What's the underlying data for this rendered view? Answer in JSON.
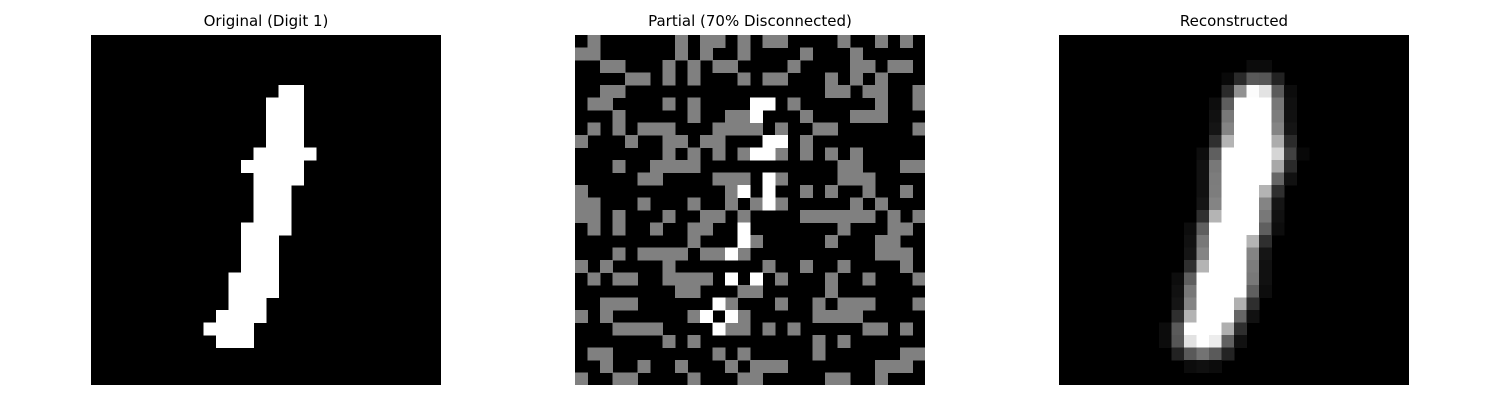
{
  "figure": {
    "panels": [
      {
        "title": "Original (Digit 1)"
      },
      {
        "title": "Partial (70% Disconnected)"
      },
      {
        "title": "Reconstructed"
      }
    ]
  }
}
